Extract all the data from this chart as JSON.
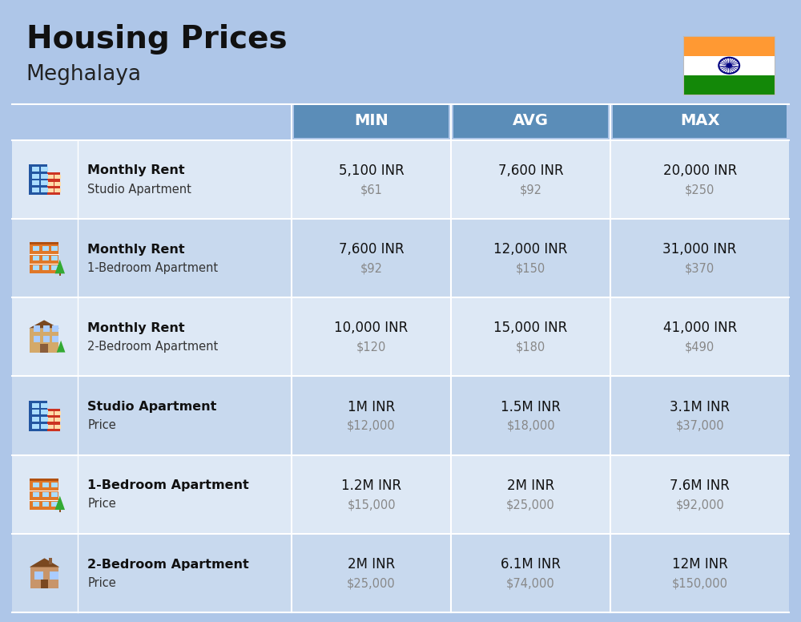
{
  "title": "Housing Prices",
  "subtitle": "Meghalaya",
  "background_color": "#aec6e8",
  "header_color": "#5b8db8",
  "header_text_color": "#ffffff",
  "row_colors": [
    "#dde8f5",
    "#c8d9ee"
  ],
  "col_header": [
    "",
    "",
    "MIN",
    "AVG",
    "MAX"
  ],
  "rows": [
    {
      "icon_type": "blue_building",
      "label_bold": "Monthly Rent",
      "label_sub": "Studio Apartment",
      "min_main": "5,100 INR",
      "min_sub": "$61",
      "avg_main": "7,600 INR",
      "avg_sub": "$92",
      "max_main": "20,000 INR",
      "max_sub": "$250"
    },
    {
      "icon_type": "orange_building",
      "label_bold": "Monthly Rent",
      "label_sub": "1-Bedroom Apartment",
      "min_main": "7,600 INR",
      "min_sub": "$92",
      "avg_main": "12,000 INR",
      "avg_sub": "$150",
      "max_main": "31,000 INR",
      "max_sub": "$370"
    },
    {
      "icon_type": "tan_building",
      "label_bold": "Monthly Rent",
      "label_sub": "2-Bedroom Apartment",
      "min_main": "10,000 INR",
      "min_sub": "$120",
      "avg_main": "15,000 INR",
      "avg_sub": "$180",
      "max_main": "41,000 INR",
      "max_sub": "$490"
    },
    {
      "icon_type": "blue_building",
      "label_bold": "Studio Apartment",
      "label_sub": "Price",
      "min_main": "1M INR",
      "min_sub": "$12,000",
      "avg_main": "1.5M INR",
      "avg_sub": "$18,000",
      "max_main": "3.1M INR",
      "max_sub": "$37,000"
    },
    {
      "icon_type": "orange_building",
      "label_bold": "1-Bedroom Apartment",
      "label_sub": "Price",
      "min_main": "1.2M INR",
      "min_sub": "$15,000",
      "avg_main": "2M INR",
      "avg_sub": "$25,000",
      "max_main": "7.6M INR",
      "max_sub": "$92,000"
    },
    {
      "icon_type": "brown_building",
      "label_bold": "2-Bedroom Apartment",
      "label_sub": "Price",
      "min_main": "2M INR",
      "min_sub": "$25,000",
      "avg_main": "6.1M INR",
      "avg_sub": "$74,000",
      "max_main": "12M INR",
      "max_sub": "$150,000"
    }
  ]
}
